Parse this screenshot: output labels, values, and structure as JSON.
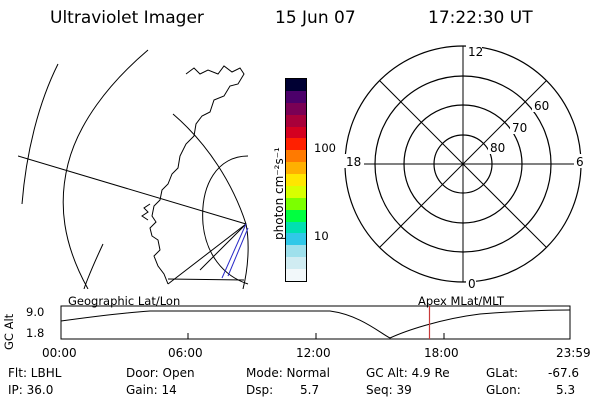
{
  "header": {
    "title": "Ultraviolet Imager",
    "date": "15 Jun 07",
    "time": "17:22:30 UT"
  },
  "colorbar": {
    "unit_label": "photon cm⁻²s⁻¹",
    "ticks": [
      "100",
      "10"
    ],
    "colors": [
      "#000033",
      "#4b006a",
      "#7a0055",
      "#a8003a",
      "#d40020",
      "#ff2000",
      "#ff7a00",
      "#ffb000",
      "#ffe600",
      "#d8ff00",
      "#7cff00",
      "#00ff40",
      "#00e0b0",
      "#30c8e8",
      "#9ee0ec",
      "#d0ecf2",
      "#f2f8fa"
    ]
  },
  "polar_plot": {
    "mlt_labels": [
      "12",
      "18",
      "6",
      "0"
    ],
    "lat_labels": [
      "60",
      "70",
      "80"
    ]
  },
  "altitude_panel": {
    "y_axis_label": "GC Alt",
    "y_ticks": [
      "9.0",
      "1.8"
    ],
    "left_caption": "Geographic Lat/Lon",
    "right_caption": "Apex MLat/MLT",
    "time_ticks": [
      "00:00",
      "06:00",
      "12:00",
      "18:00",
      "23:59"
    ],
    "marker_time": "17:22:30",
    "marker_color": "#c83a3a"
  },
  "info": {
    "filter": "Flt: LBHL",
    "ip": "IP: 36.0",
    "door": "Door: Open",
    "gain": "Gain: 14",
    "mode": "Mode: Normal",
    "dsp_label": "Dsp:",
    "dsp_value": "5.7",
    "gc_alt": "GC Alt: 4.9 Re",
    "seq": "Seq: 39",
    "glat_label": "GLat:",
    "glat_value": "-67.6",
    "glon_label": "GLon:",
    "glon_value": "5.3"
  }
}
